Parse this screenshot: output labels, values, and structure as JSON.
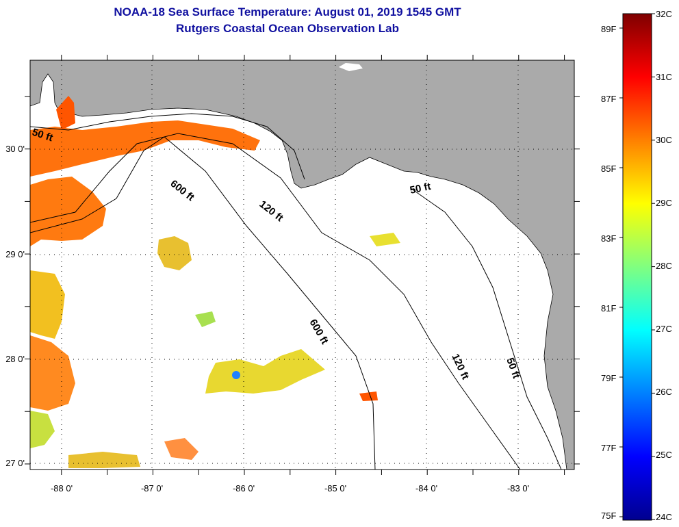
{
  "header": {
    "title": "NOAA-18 Sea Surface Temperature:  August 01, 2019 1545 GMT",
    "subtitle": "Rutgers Coastal Ocean Observation Lab"
  },
  "map": {
    "lon_ticks": [
      "-88 0'",
      "-87 0'",
      "-86 0'",
      "-85 0'",
      "-84 0'",
      "-83 0'"
    ],
    "lat_ticks": [
      "30 0'",
      "29 0'",
      "28 0'",
      "27 0'"
    ],
    "contours": [
      "50 ft",
      "600 ft",
      "120 ft",
      "50 ft",
      "600 ft",
      "120 ft",
      "50 ft"
    ],
    "colors": {
      "land": "#aaaaaa",
      "ocean": "#ffffff",
      "title": "#1010a0"
    }
  },
  "colorbar": {
    "celsius": [
      "32C",
      "31C",
      "30C",
      "29C",
      "28C",
      "27C",
      "26C",
      "25C",
      "24C"
    ],
    "fahrenheit": [
      "89F",
      "87F",
      "85F",
      "83F",
      "81F",
      "79F",
      "77F",
      "75F"
    ],
    "colors": [
      "#7f0000",
      "#ff0000",
      "#ff8000",
      "#ffff00",
      "#80ff80",
      "#00ffff",
      "#0080ff",
      "#0000ff",
      "#00008f"
    ]
  }
}
